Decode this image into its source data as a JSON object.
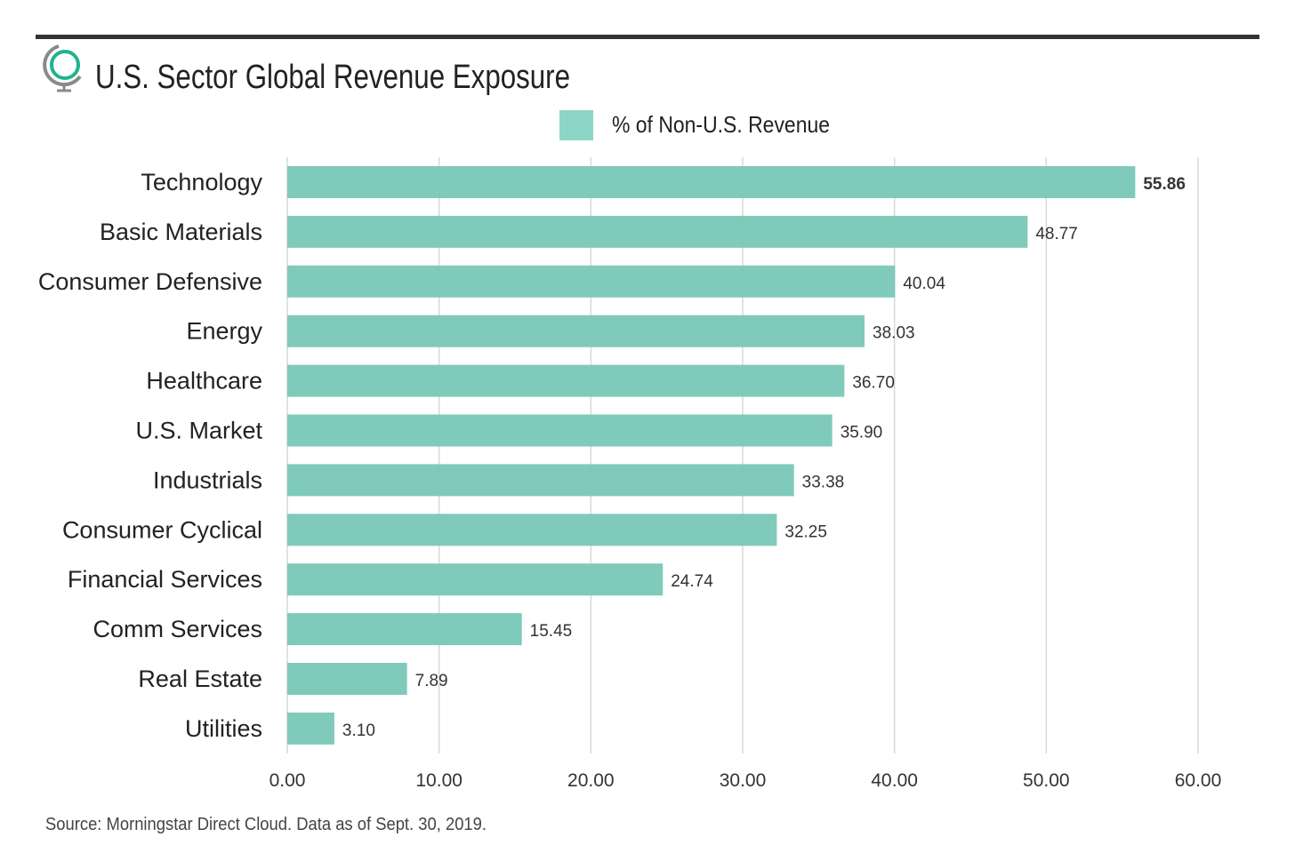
{
  "title": "U.S. Sector Global Revenue Exposure",
  "source": "Source: Morningstar Direct Cloud. Data as of Sept. 30, 2019.",
  "logo_icon": "globe-icon",
  "colors": {
    "bar": "#79c7b8",
    "legend": "#8dd5c7",
    "grid": "#d9d9d9",
    "rule": "#333333",
    "text": "#222222"
  },
  "chart_data": {
    "type": "bar",
    "orientation": "horizontal",
    "title": "U.S. Sector Global Revenue Exposure",
    "legend": [
      "% of Non-U.S. Revenue"
    ],
    "legend_position": "top",
    "categories": [
      "Technology",
      "Basic Materials",
      "Consumer Defensive",
      "Energy",
      "Healthcare",
      "U.S. Market",
      "Industrials",
      "Consumer Cyclical",
      "Financial Services",
      "Comm Services",
      "Real Estate",
      "Utilities"
    ],
    "values": [
      55.86,
      48.77,
      40.04,
      38.03,
      36.7,
      35.9,
      33.38,
      32.25,
      24.74,
      15.45,
      7.89,
      3.1
    ],
    "value_labels": [
      "55.86",
      "48.77",
      "40.04",
      "38.03",
      "36.70",
      "35.90",
      "33.38",
      "32.25",
      "24.74",
      "15.45",
      "7.89",
      "3.10"
    ],
    "xlim": [
      0,
      60
    ],
    "xticks": [
      0,
      10,
      20,
      30,
      40,
      50,
      60
    ],
    "xtick_labels": [
      "0.00",
      "10.00",
      "20.00",
      "30.00",
      "40.00",
      "50.00",
      "60.00"
    ],
    "grid": true,
    "xlabel": "",
    "ylabel": ""
  }
}
